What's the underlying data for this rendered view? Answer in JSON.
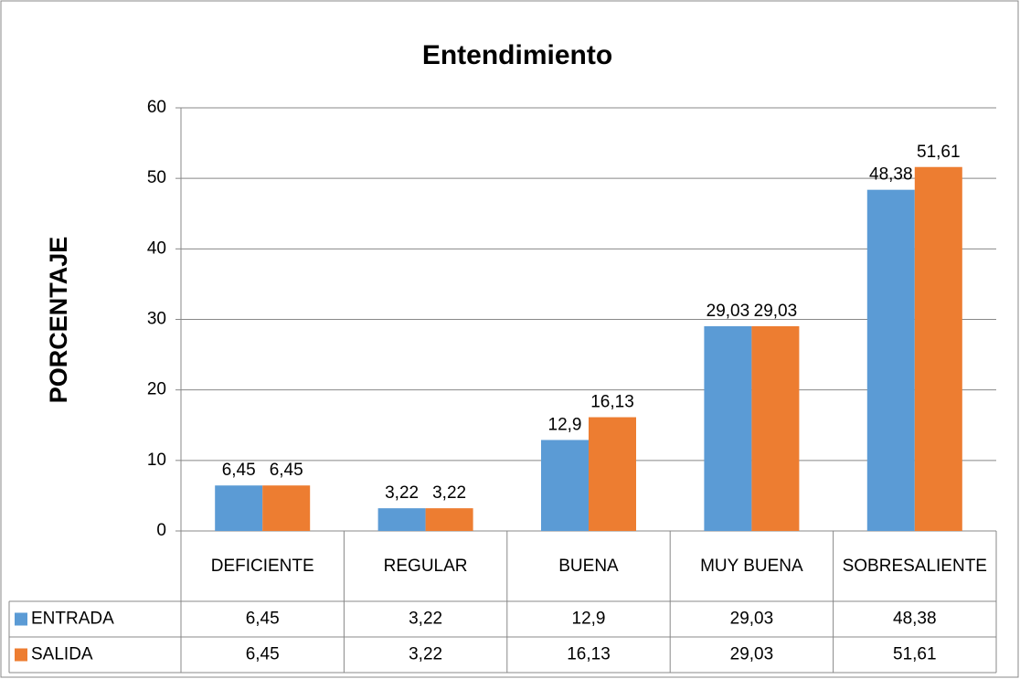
{
  "chart_data": {
    "type": "bar",
    "title": "Entendimiento",
    "y_label": "PORCENTAJE",
    "categories": [
      "DEFICIENTE",
      "REGULAR",
      "BUENA",
      "MUY BUENA",
      "SOBRESALIENTE"
    ],
    "series": [
      {
        "name": "ENTRADA",
        "color": "#5b9bd5",
        "values": [
          6.45,
          3.22,
          12.9,
          29.03,
          48.38
        ],
        "value_labels": [
          "6,45",
          "3,22",
          "12,9",
          "29,03",
          "48,38"
        ]
      },
      {
        "name": "SALIDA",
        "color": "#ed7d31",
        "values": [
          6.45,
          3.22,
          16.13,
          29.03,
          51.61
        ],
        "value_labels": [
          "6,45",
          "3,22",
          "16,13",
          "29,03",
          "51,61"
        ]
      }
    ],
    "ylim": [
      0,
      60
    ],
    "yticks": [
      0,
      10,
      20,
      30,
      40,
      50,
      60
    ],
    "grid": true,
    "data_table": true
  }
}
